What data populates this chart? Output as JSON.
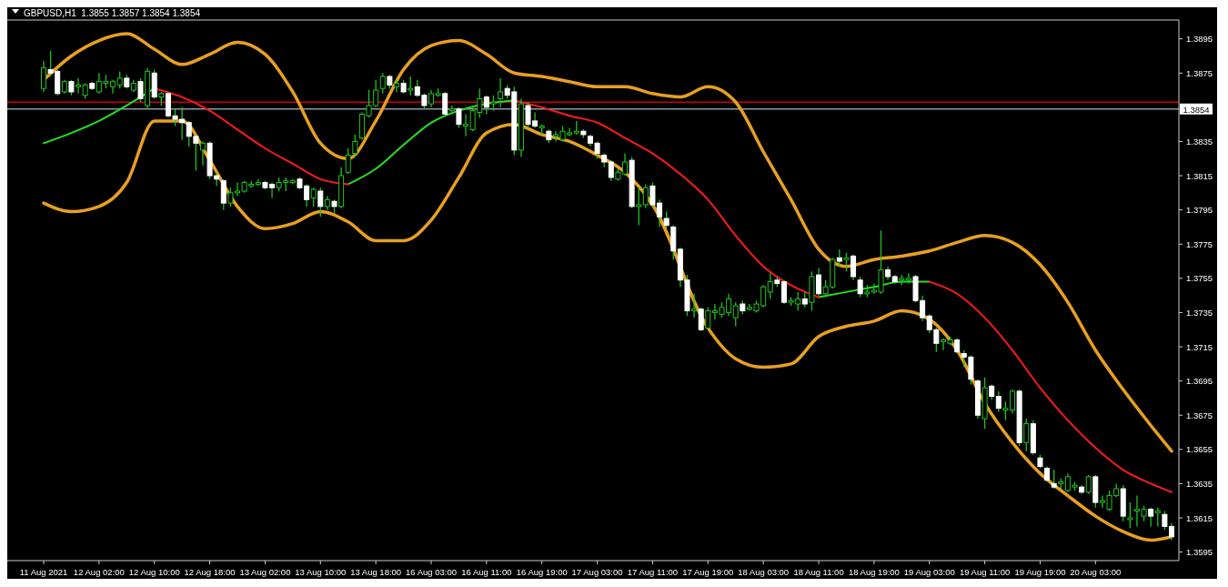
{
  "chart_data": {
    "type": "candlestick",
    "title": "GBPUSD,H1  1.3855 1.3857 1.3854 1.3854",
    "categories": [
      "11 Aug 2021",
      null,
      null,
      null,
      null,
      null,
      null,
      null,
      "12 Aug 02:00",
      null,
      null,
      null,
      null,
      null,
      null,
      null,
      "12 Aug 10:00",
      null,
      null,
      null,
      null,
      null,
      null,
      null,
      "12 Aug 18:00",
      null,
      null,
      null,
      null,
      null,
      null,
      null,
      "13 Aug 02:00",
      null,
      null,
      null,
      null,
      null,
      null,
      null,
      "13 Aug 10:00",
      null,
      null,
      null,
      null,
      null,
      null,
      null,
      "13 Aug 18:00",
      null,
      null,
      null,
      null,
      null,
      null,
      null,
      "16 Aug 03:00",
      null,
      null,
      null,
      null,
      null,
      null,
      null,
      "16 Aug 11:00",
      null,
      null,
      null,
      null,
      null,
      null,
      null,
      "16 Aug 19:00",
      null,
      null,
      null,
      null,
      null,
      null,
      null,
      "17 Aug 03:00",
      null,
      null,
      null,
      null,
      null,
      null,
      null,
      "17 Aug 11:00",
      null,
      null,
      null,
      null,
      null,
      null,
      null,
      "17 Aug 19:00",
      null,
      null,
      null,
      null,
      null,
      null,
      null,
      "18 Aug 03:00",
      null,
      null,
      null,
      null,
      null,
      null,
      null,
      "18 Aug 11:00",
      null,
      null,
      null,
      null,
      null,
      null,
      null,
      "18 Aug 19:00",
      null,
      null,
      null,
      null,
      null,
      null,
      null,
      "19 Aug 03:00",
      null,
      null,
      null,
      null,
      null,
      null,
      null,
      "19 Aug 11:00",
      null,
      null,
      null,
      null,
      null,
      null,
      null,
      "19 Aug 19:00",
      null,
      null,
      null,
      null,
      null,
      null,
      null,
      "20 Aug 03:00",
      null,
      null,
      null,
      null,
      null,
      null,
      null,
      null,
      null,
      null,
      null
    ],
    "ohlc": [
      [
        1.3866,
        1.3882,
        1.3864,
        1.3878
      ],
      [
        1.3877,
        1.3888,
        1.3873,
        1.3875
      ],
      [
        1.3876,
        1.3877,
        1.3862,
        1.3863
      ],
      [
        1.3864,
        1.3871,
        1.3863,
        1.387
      ],
      [
        1.387,
        1.3871,
        1.3862,
        1.3864
      ],
      [
        1.3867,
        1.3872,
        1.3863,
        1.3868
      ],
      [
        1.3862,
        1.3869,
        1.386,
        1.3868
      ],
      [
        1.3869,
        1.387,
        1.3865,
        1.3866
      ],
      [
        1.3864,
        1.3875,
        1.3863,
        1.387
      ],
      [
        1.3869,
        1.3874,
        1.3866,
        1.387
      ],
      [
        1.3867,
        1.3871,
        1.3863,
        1.387
      ],
      [
        1.3868,
        1.3876,
        1.3866,
        1.3872
      ],
      [
        1.3872,
        1.3874,
        1.3866,
        1.3867
      ],
      [
        1.3865,
        1.3871,
        1.3864,
        1.3869
      ],
      [
        1.387,
        1.3872,
        1.3858,
        1.386
      ],
      [
        1.3856,
        1.3878,
        1.3854,
        1.3876
      ],
      [
        1.3875,
        1.3877,
        1.386,
        1.3861
      ],
      [
        1.3861,
        1.3864,
        1.3856,
        1.3863
      ],
      [
        1.3863,
        1.3864,
        1.3849,
        1.385
      ],
      [
        1.385,
        1.3854,
        1.3844,
        1.3848
      ],
      [
        1.3848,
        1.3855,
        1.3836,
        1.3846
      ],
      [
        1.3846,
        1.3847,
        1.3832,
        1.3838
      ],
      [
        1.3838,
        1.3839,
        1.3818,
        1.3834
      ],
      [
        1.383,
        1.3835,
        1.3821,
        1.3834
      ],
      [
        1.3834,
        1.3835,
        1.3813,
        1.3815
      ],
      [
        1.3815,
        1.3817,
        1.3809,
        1.3813
      ],
      [
        1.3812,
        1.3813,
        1.3795,
        1.3799
      ],
      [
        1.3799,
        1.3808,
        1.3797,
        1.3805
      ],
      [
        1.3805,
        1.3811,
        1.3803,
        1.3806
      ],
      [
        1.3806,
        1.3812,
        1.3805,
        1.3811
      ],
      [
        1.3809,
        1.3812,
        1.3808,
        1.381
      ],
      [
        1.381,
        1.3813,
        1.3809,
        1.3811
      ],
      [
        1.3811,
        1.3812,
        1.3807,
        1.3808
      ],
      [
        1.381,
        1.3811,
        1.3802,
        1.3808
      ],
      [
        1.3808,
        1.3814,
        1.3806,
        1.3811
      ],
      [
        1.3811,
        1.3814,
        1.3806,
        1.3812
      ],
      [
        1.3811,
        1.3813,
        1.381,
        1.3812
      ],
      [
        1.3813,
        1.3814,
        1.3807,
        1.3808
      ],
      [
        1.3809,
        1.381,
        1.3797,
        1.3801
      ],
      [
        1.3802,
        1.3808,
        1.3797,
        1.3807
      ],
      [
        1.3806,
        1.3808,
        1.3791,
        1.3797
      ],
      [
        1.3797,
        1.3803,
        1.3795,
        1.3801
      ],
      [
        1.38,
        1.3801,
        1.3793,
        1.3797
      ],
      [
        1.3797,
        1.382,
        1.3796,
        1.3815
      ],
      [
        1.3817,
        1.3831,
        1.3816,
        1.3827
      ],
      [
        1.3828,
        1.3839,
        1.3826,
        1.3835
      ],
      [
        1.3837,
        1.3852,
        1.3836,
        1.3851
      ],
      [
        1.385,
        1.3865,
        1.3849,
        1.3856
      ],
      [
        1.3856,
        1.3871,
        1.3855,
        1.3865
      ],
      [
        1.3866,
        1.3875,
        1.3863,
        1.3873
      ],
      [
        1.3873,
        1.3874,
        1.3866,
        1.3868
      ],
      [
        1.3867,
        1.3871,
        1.3864,
        1.3869
      ],
      [
        1.3869,
        1.3871,
        1.3863,
        1.3864
      ],
      [
        1.3865,
        1.3873,
        1.3862,
        1.3866
      ],
      [
        1.3867,
        1.3871,
        1.3861,
        1.3862
      ],
      [
        1.3862,
        1.3863,
        1.3854,
        1.3856
      ],
      [
        1.3857,
        1.3865,
        1.3855,
        1.3863
      ],
      [
        1.3862,
        1.3866,
        1.3861,
        1.3863
      ],
      [
        1.3863,
        1.3864,
        1.385,
        1.3851
      ],
      [
        1.3853,
        1.3856,
        1.3851,
        1.3854
      ],
      [
        1.3854,
        1.3855,
        1.3843,
        1.3845
      ],
      [
        1.3844,
        1.3851,
        1.3838,
        1.3845
      ],
      [
        1.3842,
        1.3856,
        1.3841,
        1.3853
      ],
      [
        1.3852,
        1.3866,
        1.3849,
        1.386
      ],
      [
        1.3861,
        1.3862,
        1.3851,
        1.3855
      ],
      [
        1.3857,
        1.3862,
        1.3853,
        1.3858
      ],
      [
        1.386,
        1.3872,
        1.3855,
        1.3864
      ],
      [
        1.3866,
        1.3868,
        1.386,
        1.3862
      ],
      [
        1.3864,
        1.3867,
        1.3827,
        1.383
      ],
      [
        1.383,
        1.386,
        1.3826,
        1.3857
      ],
      [
        1.3856,
        1.3858,
        1.3843,
        1.3845
      ],
      [
        1.3847,
        1.3852,
        1.3843,
        1.3844
      ],
      [
        1.3843,
        1.3845,
        1.3839,
        1.3844
      ],
      [
        1.3841,
        1.3842,
        1.3834,
        1.3836
      ],
      [
        1.3838,
        1.3841,
        1.3835,
        1.3839
      ],
      [
        1.3836,
        1.3844,
        1.3835,
        1.3841
      ],
      [
        1.3839,
        1.3843,
        1.3838,
        1.384
      ],
      [
        1.384,
        1.3847,
        1.3839,
        1.3841
      ],
      [
        1.3841,
        1.3842,
        1.3837,
        1.3839
      ],
      [
        1.3838,
        1.3839,
        1.3832,
        1.3834
      ],
      [
        1.3834,
        1.3835,
        1.3825,
        1.3828
      ],
      [
        1.3827,
        1.3828,
        1.382,
        1.3823
      ],
      [
        1.3823,
        1.3824,
        1.3812,
        1.3814
      ],
      [
        1.3813,
        1.3819,
        1.3812,
        1.3817
      ],
      [
        1.3816,
        1.3828,
        1.3815,
        1.3823
      ],
      [
        1.3824,
        1.3826,
        1.3796,
        1.3797
      ],
      [
        1.3797,
        1.3808,
        1.3786,
        1.3798
      ],
      [
        1.3798,
        1.381,
        1.3796,
        1.3808
      ],
      [
        1.3809,
        1.3811,
        1.3796,
        1.3798
      ],
      [
        1.3799,
        1.3801,
        1.3785,
        1.3791
      ],
      [
        1.379,
        1.3794,
        1.3784,
        1.3786
      ],
      [
        1.3785,
        1.3786,
        1.3766,
        1.3771
      ],
      [
        1.3772,
        1.3773,
        1.375,
        1.3754
      ],
      [
        1.3754,
        1.3757,
        1.3733,
        1.3736
      ],
      [
        1.3736,
        1.3746,
        1.3732,
        1.3737
      ],
      [
        1.3737,
        1.3738,
        1.3724,
        1.3725
      ],
      [
        1.3726,
        1.3738,
        1.3725,
        1.3736
      ],
      [
        1.3735,
        1.374,
        1.3731,
        1.3736
      ],
      [
        1.3734,
        1.3741,
        1.3732,
        1.3738
      ],
      [
        1.3735,
        1.3746,
        1.3733,
        1.3743
      ],
      [
        1.3732,
        1.3741,
        1.3727,
        1.3739
      ],
      [
        1.374,
        1.3742,
        1.3734,
        1.3736
      ],
      [
        1.3737,
        1.374,
        1.3736,
        1.3738
      ],
      [
        1.3736,
        1.3742,
        1.3735,
        1.374
      ],
      [
        1.3739,
        1.3751,
        1.3738,
        1.375
      ],
      [
        1.3747,
        1.3758,
        1.3743,
        1.3753
      ],
      [
        1.3754,
        1.3756,
        1.375,
        1.3752
      ],
      [
        1.3753,
        1.3754,
        1.374,
        1.3741
      ],
      [
        1.3741,
        1.3744,
        1.3739,
        1.3742
      ],
      [
        1.374,
        1.3747,
        1.3736,
        1.3743
      ],
      [
        1.3743,
        1.3747,
        1.3738,
        1.374
      ],
      [
        1.3741,
        1.3759,
        1.3736,
        1.3756
      ],
      [
        1.3757,
        1.3761,
        1.3745,
        1.3746
      ],
      [
        1.3746,
        1.3754,
        1.3744,
        1.375
      ],
      [
        1.375,
        1.3767,
        1.3749,
        1.3766
      ],
      [
        1.3767,
        1.3772,
        1.3762,
        1.3765
      ],
      [
        1.3766,
        1.377,
        1.3759,
        1.3767
      ],
      [
        1.3768,
        1.3769,
        1.3754,
        1.3756
      ],
      [
        1.3754,
        1.3756,
        1.3744,
        1.3746
      ],
      [
        1.3746,
        1.3751,
        1.3744,
        1.3747
      ],
      [
        1.3747,
        1.3752,
        1.3746,
        1.3748
      ],
      [
        1.3747,
        1.3783,
        1.3746,
        1.376
      ],
      [
        1.376,
        1.3762,
        1.3754,
        1.3756
      ],
      [
        1.3756,
        1.3757,
        1.3752,
        1.3753
      ],
      [
        1.3754,
        1.3757,
        1.3751,
        1.3755
      ],
      [
        1.3754,
        1.3758,
        1.3752,
        1.3755
      ],
      [
        1.3756,
        1.3757,
        1.3741,
        1.3742
      ],
      [
        1.3742,
        1.3745,
        1.373,
        1.3732
      ],
      [
        1.3733,
        1.3734,
        1.3723,
        1.3725
      ],
      [
        1.3725,
        1.3726,
        1.3712,
        1.3717
      ],
      [
        1.3718,
        1.372,
        1.3713,
        1.3719
      ],
      [
        1.3717,
        1.3721,
        1.3716,
        1.3719
      ],
      [
        1.3719,
        1.372,
        1.3711,
        1.3712
      ],
      [
        1.3711,
        1.3713,
        1.3703,
        1.3709
      ],
      [
        1.3709,
        1.371,
        1.3693,
        1.3696
      ],
      [
        1.3695,
        1.3696,
        1.3673,
        1.3675
      ],
      [
        1.3673,
        1.3697,
        1.3667,
        1.3691
      ],
      [
        1.3692,
        1.3693,
        1.3684,
        1.3686
      ],
      [
        1.3686,
        1.3689,
        1.3677,
        1.3679
      ],
      [
        1.3678,
        1.3683,
        1.3672,
        1.3679
      ],
      [
        1.3678,
        1.369,
        1.3676,
        1.3689
      ],
      [
        1.3689,
        1.369,
        1.3657,
        1.3659
      ],
      [
        1.3659,
        1.3673,
        1.3654,
        1.367
      ],
      [
        1.367,
        1.3672,
        1.3652,
        1.3653
      ],
      [
        1.365,
        1.3652,
        1.3644,
        1.3645
      ],
      [
        1.3644,
        1.3645,
        1.3636,
        1.3637
      ],
      [
        1.3635,
        1.3643,
        1.3632,
        1.3633
      ],
      [
        1.3635,
        1.3638,
        1.3632,
        1.3636
      ],
      [
        1.3631,
        1.3641,
        1.363,
        1.3639
      ],
      [
        1.3633,
        1.3636,
        1.3631,
        1.3634
      ],
      [
        1.3633,
        1.3634,
        1.3629,
        1.363
      ],
      [
        1.363,
        1.364,
        1.3629,
        1.3639
      ],
      [
        1.3639,
        1.364,
        1.3621,
        1.3624
      ],
      [
        1.3624,
        1.3628,
        1.3621,
        1.3625
      ],
      [
        1.362,
        1.3631,
        1.3619,
        1.3628
      ],
      [
        1.3628,
        1.3635,
        1.3627,
        1.3632
      ],
      [
        1.3632,
        1.3634,
        1.3613,
        1.3616
      ],
      [
        1.3614,
        1.3624,
        1.3609,
        1.3615
      ],
      [
        1.3619,
        1.3628,
        1.361,
        1.362
      ],
      [
        1.3616,
        1.3622,
        1.3613,
        1.362
      ],
      [
        1.362,
        1.3621,
        1.361,
        1.3616
      ],
      [
        1.3618,
        1.3621,
        1.361,
        1.3619
      ],
      [
        1.3617,
        1.3619,
        1.3608,
        1.361
      ],
      [
        1.361,
        1.3612,
        1.3602,
        1.3604
      ]
    ],
    "series": [
      {
        "type": "line",
        "color": "#e8a020",
        "values": [
          1.3871,
          null,
          null,
          null,
          1.3885,
          null,
          null,
          null,
          1.3894,
          null,
          null,
          null,
          1.3898,
          null,
          null,
          null,
          1.3889,
          null,
          null,
          null,
          1.388,
          null,
          null,
          null,
          1.3886,
          null,
          null,
          null,
          1.3893,
          null,
          null,
          null,
          1.3886,
          null,
          null,
          null,
          1.3864,
          null,
          null,
          null,
          1.3834,
          null,
          null,
          null,
          1.3825,
          null,
          null,
          null,
          1.3847,
          null,
          null,
          null,
          1.3877,
          null,
          null,
          null,
          1.3891,
          null,
          null,
          null,
          1.3894,
          null,
          null,
          null,
          1.3886,
          null,
          null,
          null,
          1.3875,
          null,
          null,
          null,
          1.3873,
          null,
          null,
          null,
          1.387,
          null,
          null,
          null,
          1.3867,
          null,
          null,
          null,
          1.3867,
          null,
          null,
          null,
          1.3863,
          null,
          null,
          null,
          1.3861,
          null,
          null,
          null,
          1.3867,
          null,
          null,
          null,
          1.3858,
          null,
          null,
          null,
          1.3829,
          null,
          null,
          null,
          1.3801,
          null,
          null,
          null,
          1.3772,
          null,
          null,
          null,
          1.3762,
          null,
          null,
          null,
          1.3766,
          null,
          null,
          null,
          1.3768,
          null,
          null,
          null,
          1.3771,
          null,
          null,
          null,
          1.3776,
          null,
          null,
          null,
          1.378,
          null,
          null,
          null,
          1.3776,
          null,
          null,
          null,
          1.3763,
          null,
          null,
          null,
          1.3741,
          null,
          null,
          null,
          1.3713,
          null,
          null,
          null,
          1.369,
          null,
          null,
          null,
          1.3669,
          null,
          null,
          1.3654
        ]
      },
      {
        "type": "line",
        "color": "#e8a020",
        "values": [
          1.3799,
          null,
          null,
          null,
          1.3794,
          null,
          null,
          null,
          1.3797,
          null,
          null,
          null,
          1.3811,
          null,
          null,
          null,
          1.3847,
          null,
          null,
          null,
          1.3847,
          null,
          null,
          null,
          1.3824,
          null,
          null,
          null,
          1.3797,
          null,
          null,
          null,
          1.3784,
          null,
          null,
          null,
          1.3787,
          null,
          null,
          null,
          1.3794,
          null,
          null,
          null,
          1.3788,
          null,
          null,
          null,
          1.3777,
          null,
          null,
          null,
          1.3777,
          null,
          null,
          null,
          1.3789,
          null,
          null,
          null,
          1.3814,
          null,
          null,
          null,
          1.384,
          null,
          null,
          null,
          1.3845,
          null,
          null,
          null,
          1.3839,
          null,
          null,
          null,
          1.3835,
          null,
          null,
          null,
          1.3827,
          null,
          null,
          null,
          1.3817,
          null,
          null,
          null,
          1.3798,
          null,
          null,
          null,
          null,
          null,
          null,
          null,
          1.3726,
          null,
          null,
          null,
          1.3708,
          null,
          null,
          null,
          1.3703,
          null,
          null,
          null,
          1.3705,
          null,
          null,
          null,
          1.3721,
          null,
          null,
          null,
          1.3727,
          null,
          null,
          null,
          1.373,
          null,
          null,
          null,
          1.3736,
          null,
          null,
          null,
          1.3731,
          null,
          null,
          null,
          1.3713,
          null,
          null,
          null,
          1.3682,
          null,
          null,
          null,
          1.3659,
          null,
          null,
          null,
          1.3641,
          null,
          null,
          null,
          1.3628,
          null,
          null,
          null,
          1.3616,
          null,
          null,
          null,
          1.3607,
          null,
          null,
          null,
          1.3602,
          null,
          null,
          1.3604
        ]
      },
      {
        "type": "line",
        "color": "#22e022",
        "values": [
          1.3834,
          null,
          null,
          null,
          1.384,
          null,
          null,
          null,
          1.3847,
          null,
          null,
          null,
          1.3856,
          null,
          null,
          null,
          1.3866,
          null,
          null,
          null,
          null,
          null,
          null,
          null,
          null,
          null,
          null,
          null,
          null,
          null,
          null,
          null,
          null,
          null,
          null,
          null,
          null,
          null,
          null,
          null,
          null,
          null,
          null,
          null,
          1.381,
          null,
          null,
          null,
          1.3819,
          null,
          null,
          null,
          1.3833,
          null,
          null,
          null,
          1.3846,
          null,
          null,
          null,
          1.3853,
          null,
          null,
          null,
          1.3857,
          null,
          null,
          null,
          1.3859,
          null,
          null,
          null,
          null,
          null,
          null,
          null,
          null,
          null,
          null,
          null,
          null,
          null,
          null,
          null,
          null,
          null,
          null,
          null,
          null,
          null,
          null,
          null,
          null,
          null,
          null,
          null,
          null,
          null,
          null,
          null,
          null,
          null,
          null,
          null,
          null,
          null,
          null,
          null,
          null,
          null,
          null,
          null,
          1.3744,
          null,
          null,
          null,
          1.3747,
          null,
          null,
          null,
          1.375,
          null,
          null,
          null,
          1.3753,
          null,
          null,
          null,
          1.3753,
          null,
          null,
          null,
          null,
          null,
          null,
          null,
          null,
          null,
          null,
          null,
          null,
          null,
          null,
          null,
          null,
          null,
          null,
          null,
          null,
          null,
          null,
          null,
          null,
          null,
          null,
          null,
          null,
          null,
          null,
          null,
          null,
          null,
          null,
          null
        ]
      },
      {
        "type": "line",
        "color": "#ff1a1a",
        "values": [
          null,
          null,
          null,
          null,
          null,
          null,
          null,
          null,
          null,
          null,
          null,
          null,
          null,
          null,
          null,
          null,
          1.3866,
          null,
          null,
          null,
          1.3861,
          null,
          null,
          null,
          1.3853,
          null,
          null,
          null,
          1.3842,
          null,
          null,
          null,
          1.3831,
          null,
          null,
          null,
          1.3822,
          null,
          null,
          null,
          1.3813,
          null,
          null,
          null,
          1.381,
          null,
          null,
          null,
          null,
          null,
          null,
          null,
          null,
          null,
          null,
          null,
          null,
          null,
          null,
          null,
          null,
          null,
          null,
          null,
          null,
          null,
          null,
          null,
          1.3859,
          null,
          null,
          null,
          1.3855,
          null,
          null,
          null,
          1.385,
          null,
          null,
          null,
          1.3846,
          null,
          null,
          null,
          1.3837,
          null,
          null,
          null,
          1.3828,
          null,
          null,
          null,
          1.3816,
          null,
          null,
          null,
          1.3801,
          null,
          null,
          null,
          1.378,
          null,
          null,
          null,
          1.3762,
          null,
          null,
          null,
          1.3751,
          null,
          null,
          null,
          1.3744,
          null,
          null,
          null,
          null,
          null,
          null,
          null,
          null,
          null,
          null,
          null,
          null,
          null,
          null,
          null,
          1.3753,
          null,
          null,
          null,
          1.3746,
          null,
          null,
          null,
          1.3732,
          null,
          null,
          null,
          1.3713,
          null,
          null,
          null,
          1.3691,
          null,
          null,
          null,
          1.3672,
          null,
          null,
          null,
          1.3656,
          null,
          null,
          null,
          1.3643,
          null,
          null,
          null,
          1.3635,
          null,
          null,
          1.363
        ]
      }
    ],
    "ylim": [
      1.359,
      1.3906
    ],
    "yticks": [
      1.3895,
      1.3875,
      1.3835,
      1.3815,
      1.3795,
      1.3775,
      1.3755,
      1.3735,
      1.3715,
      1.3695,
      1.3675,
      1.3655,
      1.3635,
      1.3615,
      1.3595
    ],
    "ref_lines": [
      {
        "axis": "y",
        "value": 1.3858,
        "color": "#d00000"
      },
      {
        "axis": "y",
        "value": 1.3854,
        "label": "1.3854",
        "color": "#8a9aa8"
      }
    ]
  }
}
